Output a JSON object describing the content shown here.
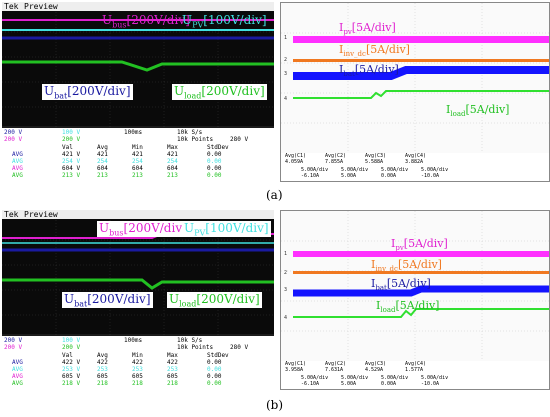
{
  "colors": {
    "magenta": "#e020d0",
    "cyan": "#40e0e0",
    "navy": "#1a1aa0",
    "green": "#22c022",
    "blue": "#1414ff",
    "orange": "#f07820",
    "brightgreen": "#30e030"
  },
  "panel_a": {
    "left": {
      "header": {
        "brand": "Tek",
        "mode": "Preview"
      },
      "labels": {
        "ubus": "U",
        "ubus_sub": "bus",
        "ubus_scale": "[200V/div]",
        "upv": "U",
        "upv_sub": "PV",
        "upv_scale": "[100V/div]",
        "ubat": "U",
        "ubat_sub": "bat",
        "ubat_scale": "[200V/div]",
        "uload": "U",
        "uload_sub": "load",
        "uload_scale": "[200V/div]"
      },
      "settings": {
        "ch1": "200 V",
        "ch2": "100 V",
        "ch3": "200 V",
        "ch4": "200 V",
        "timebase": "100ms",
        "rate": "10k S/s",
        "points": "10k Points",
        "trigger": "280 V"
      },
      "table": {
        "headers": [
          "Val",
          "Avg",
          "Min",
          "Max",
          "StdDev"
        ],
        "rows": [
          {
            "label": "AVG",
            "values": [
              "421 V",
              "421",
              "421",
              "421",
              "0.00"
            ]
          },
          {
            "label": "AVG",
            "values": [
              "254 V",
              "254",
              "254",
              "254",
              "0.00"
            ]
          },
          {
            "label": "AVG",
            "values": [
              "604 V",
              "604",
              "604",
              "604",
              "0.00"
            ]
          },
          {
            "label": "AVG",
            "values": [
              "213 V",
              "213",
              "213",
              "213",
              "0.00"
            ]
          }
        ]
      }
    },
    "right": {
      "labels": {
        "ipv": "I",
        "ipv_sub": "pv",
        "ipv_scale": "[5A/div]",
        "iinv": "I",
        "iinv_sub": "inv_dc",
        "iinv_scale": "[5A/div]",
        "ibat": "I",
        "ibat_sub": "bat",
        "ibat_scale": "[5A/div]",
        "iload": "I",
        "iload_sub": "load",
        "iload_scale": "[5A/div]"
      },
      "meas": [
        "Avg(C1)",
        "Avg(C2)",
        "Avg(C3)",
        "Avg(C4)"
      ],
      "meas_vals": [
        "4.059A",
        "7.855A",
        "5.588A",
        "3.882A"
      ],
      "channels": [
        "5.00A/div",
        "5.00A/div",
        "5.00A/div",
        "5.00A/div"
      ],
      "offsets": [
        "-6.10A",
        "5.00A",
        "0.00A",
        "-10.0A"
      ]
    },
    "caption": "(a)"
  },
  "panel_b": {
    "left": {
      "header": {
        "brand": "Tek",
        "mode": "Preview"
      },
      "labels": {
        "ubus": "U",
        "ubus_sub": "bus",
        "ubus_scale": "[200V/div]",
        "upv": "U",
        "upv_sub": "PV",
        "upv_scale": "[100V/div]",
        "ubat": "U",
        "ubat_sub": "bat",
        "ubat_scale": "[200V/div]",
        "uload": "U",
        "uload_sub": "load",
        "uload_scale": "[200V/div]"
      },
      "settings": {
        "ch1": "200 V",
        "ch2": "100 V",
        "ch3": "200 V",
        "ch4": "200 V",
        "timebase": "100ms",
        "rate": "10k S/s",
        "points": "10k Points",
        "trigger": "280 V"
      },
      "table": {
        "headers": [
          "Val",
          "Avg",
          "Min",
          "Max",
          "StdDev"
        ],
        "rows": [
          {
            "label": "AVG",
            "values": [
              "422 V",
              "422",
              "422",
              "422",
              "0.00"
            ]
          },
          {
            "label": "AVG",
            "values": [
              "253 V",
              "253",
              "253",
              "253",
              "0.00"
            ]
          },
          {
            "label": "AVG",
            "values": [
              "605 V",
              "605",
              "605",
              "605",
              "0.00"
            ]
          },
          {
            "label": "AVG",
            "values": [
              "218 V",
              "218",
              "218",
              "218",
              "0.00"
            ]
          }
        ]
      }
    },
    "right": {
      "labels": {
        "ipv": "I",
        "ipv_sub": "pv",
        "ipv_scale": "[5A/div]",
        "iinv": "I",
        "iinv_sub": "inv_dc",
        "iinv_scale": "[5A/div]",
        "ibat": "I",
        "ibat_sub": "bat",
        "ibat_scale": "[5A/div]",
        "iload": "I",
        "iload_sub": "load",
        "iload_scale": "[5A/div]"
      },
      "meas": [
        "Avg(C1)",
        "Avg(C2)",
        "Avg(C3)",
        "Avg(C4)"
      ],
      "meas_vals": [
        "3.958A",
        "7.631A",
        "4.529A",
        "1.577A"
      ],
      "channels": [
        "5.00A/div",
        "5.00A/div",
        "5.00A/div",
        "5.00A/div"
      ],
      "offsets": [
        "-6.10A",
        "5.00A",
        "0.00A",
        "-10.0A"
      ]
    },
    "caption": "(b)"
  }
}
